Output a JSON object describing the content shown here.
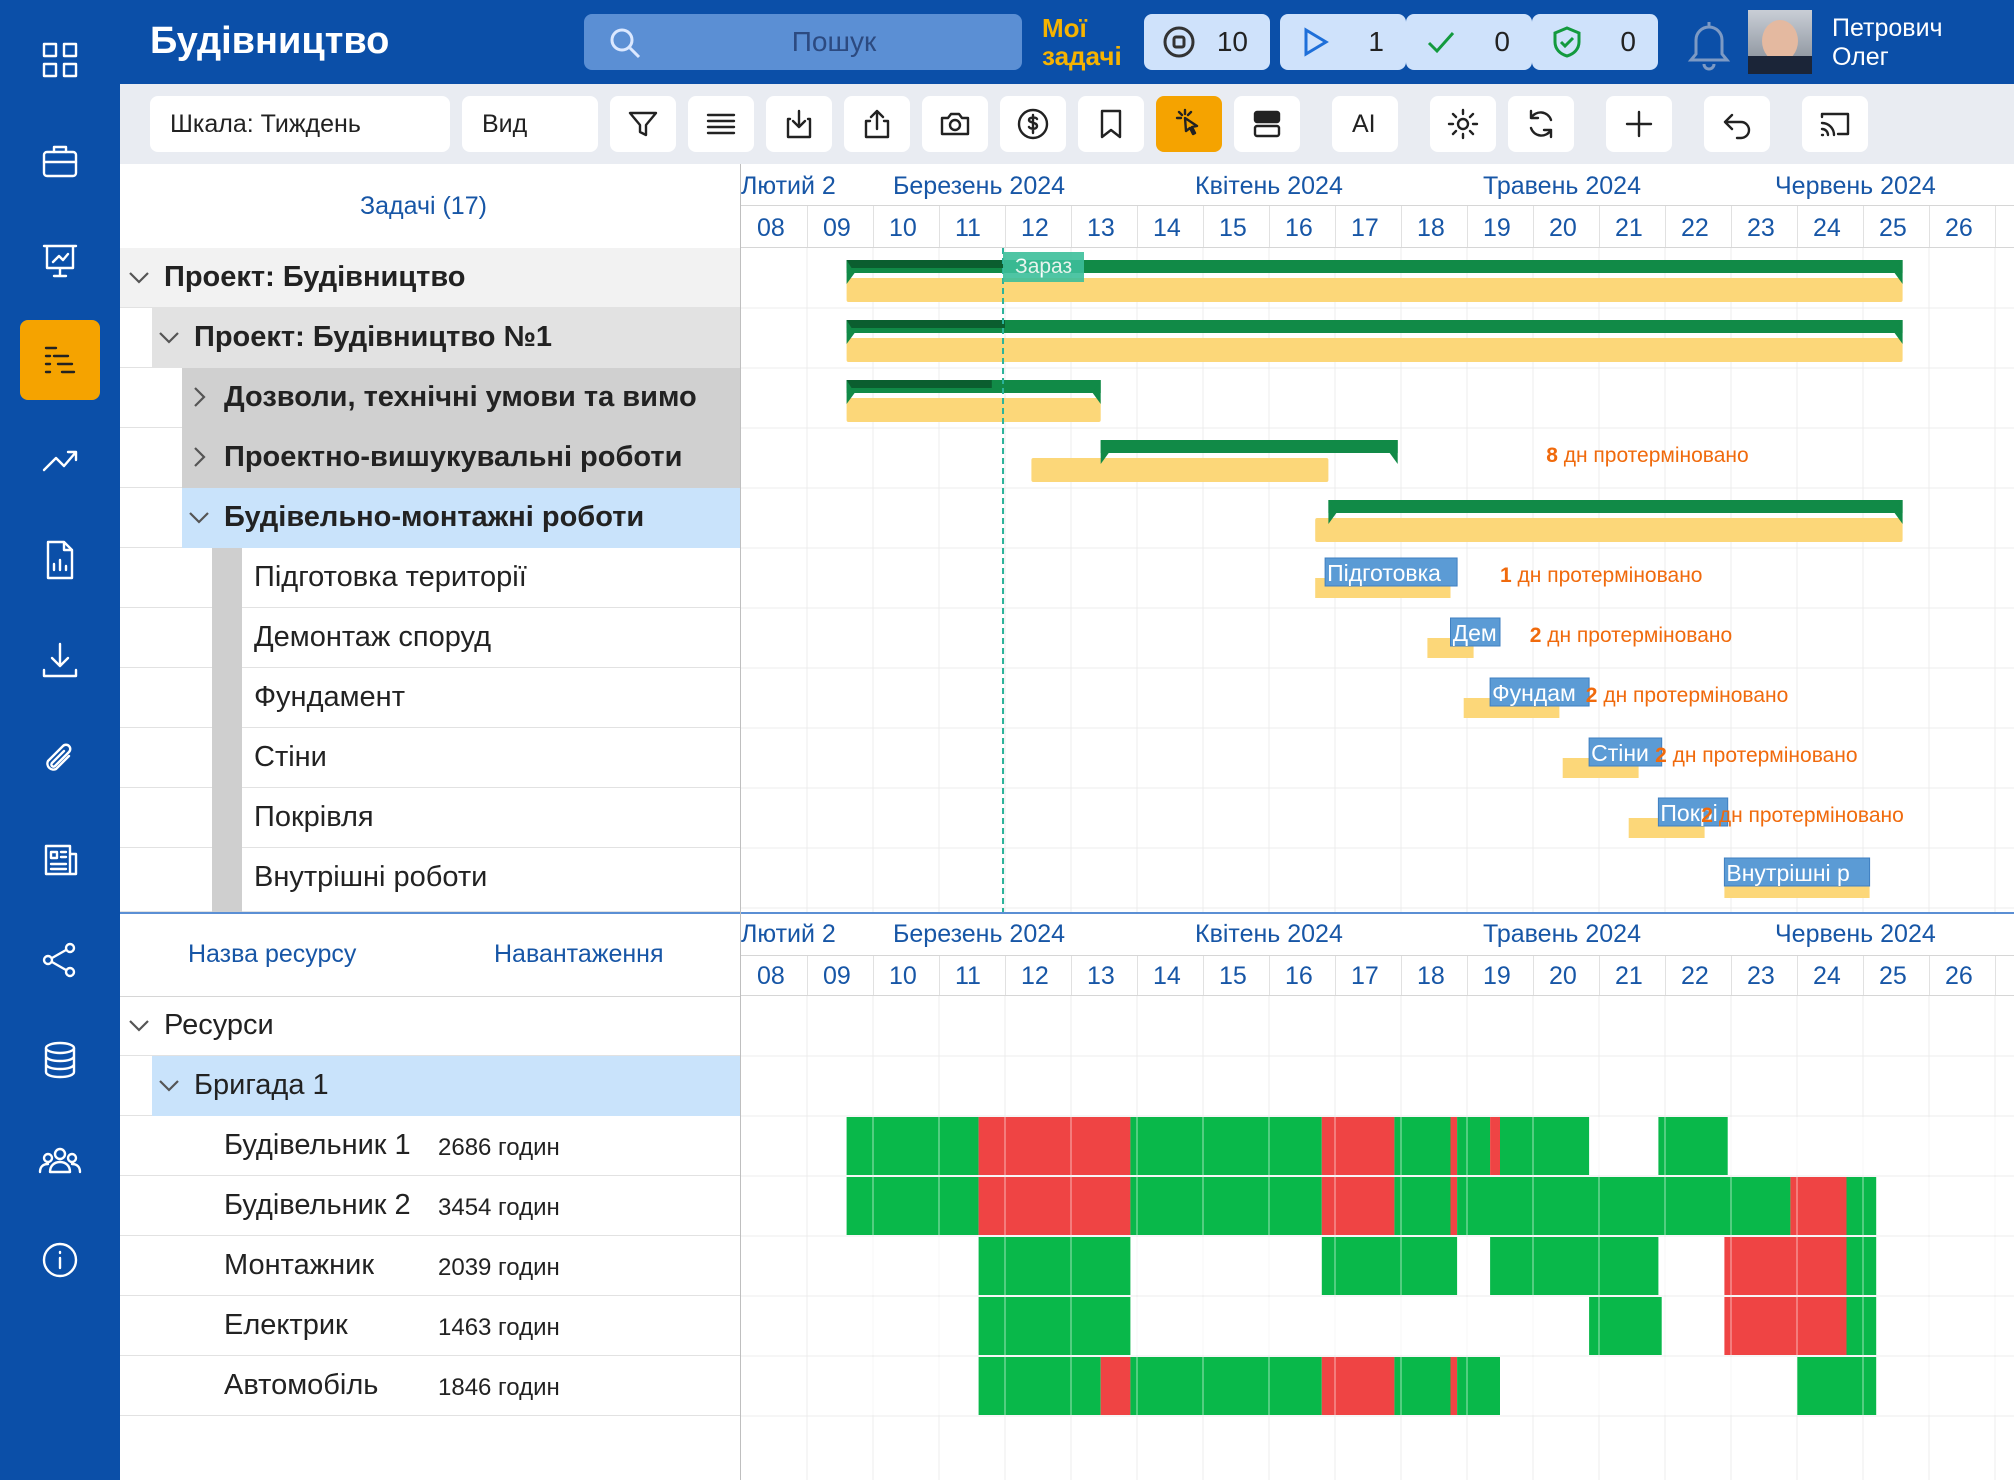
{
  "app": {
    "title": "Будівництво"
  },
  "search": {
    "placeholder": "Пошук"
  },
  "my_tasks": {
    "line1": "Мої",
    "line2": "задачі"
  },
  "stats": [
    {
      "icon": "stop-circle-icon",
      "count": "10"
    },
    {
      "icon": "play-icon",
      "count": "1"
    },
    {
      "icon": "check-icon",
      "count": "0"
    },
    {
      "icon": "shield-check-icon",
      "count": "0"
    }
  ],
  "user": {
    "line1": "Петрович",
    "line2": "Олег"
  },
  "toolbar": {
    "scale_label": "Шкала: Тиждень",
    "view_label": "Вид",
    "ai_label": "AI"
  },
  "task_panel": {
    "header": "Задачі (17)"
  },
  "timeline": {
    "months": [
      "Лютий 2",
      "Березень 2024",
      "Квітень 2024",
      "Травень 2024",
      "Червень 2024"
    ],
    "weeks": [
      "08",
      "09",
      "10",
      "11",
      "12",
      "13",
      "14",
      "15",
      "16",
      "17",
      "18",
      "19",
      "20",
      "21",
      "22",
      "23",
      "24",
      "25",
      "26"
    ],
    "now_label": "Зараз"
  },
  "tasks": [
    {
      "label": "Проект: Будівництво",
      "bold": true
    },
    {
      "label": "Проект: Будівництво №1",
      "bold": true
    },
    {
      "label": "Дозволи, технічні умови та вимо",
      "bold": true
    },
    {
      "label": "Проектно-вишукувальні роботи",
      "bold": true,
      "overdue_n": "8",
      "overdue_text": " дн протерміновано"
    },
    {
      "label": "Будівельно-монтажні роботи",
      "bold": true
    },
    {
      "label": "Підготовка території",
      "bar_text": "Підготовка",
      "overdue_n": "1",
      "overdue_text": " дн протерміновано"
    },
    {
      "label": "Демонтаж споруд",
      "bar_text": "Дем",
      "overdue_n": "2",
      "overdue_text": " дн протерміновано"
    },
    {
      "label": "Фундамент",
      "bar_text": "Фундам",
      "overdue_n": "2",
      "overdue_text": " дн протерміновано"
    },
    {
      "label": "Стіни",
      "bar_text": "Стіни",
      "overdue_n": "2",
      "overdue_text": " дн протерміновано"
    },
    {
      "label": "Покрівля",
      "bar_text": "Покрі",
      "overdue_n": "2",
      "overdue_text": " дн протерміновано"
    },
    {
      "label": "Внутрішні роботи",
      "bar_text": "Внутрішні р"
    }
  ],
  "resource_panel": {
    "col_name": "Назва ресурсу",
    "col_load": "Навантаження"
  },
  "resources": [
    {
      "label": "Ресурси"
    },
    {
      "label": "Бригада 1"
    },
    {
      "label": "Будівельник 1",
      "hours": "2686 годин"
    },
    {
      "label": "Будівельник 2",
      "hours": "3454 годин"
    },
    {
      "label": "Монтажник",
      "hours": "2039 годин"
    },
    {
      "label": "Електрик",
      "hours": "1463 годин"
    },
    {
      "label": "Автомобіль",
      "hours": "1846 годин"
    }
  ],
  "colors": {
    "brand": "#0b4fa8",
    "accent": "#f5a300",
    "ok": "#09b84a",
    "overload": "#ef4444",
    "plan": "#fcd779",
    "actual": "#118a47",
    "task": "#5b9bd5"
  }
}
